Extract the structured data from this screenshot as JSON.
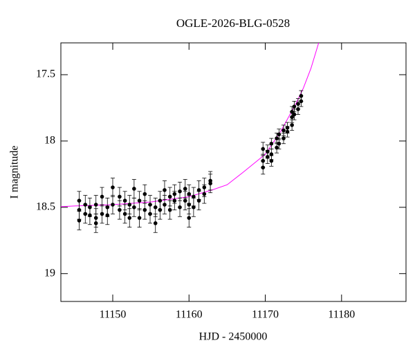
{
  "chart_data": {
    "type": "scatter",
    "title": "OGLE-2026-BLG-0528",
    "x_label": "HJD - 2450000",
    "y_label": "I magnitude",
    "xlim": [
      11143.2,
      11188.45
    ],
    "xticks": [
      11150,
      11160,
      11170,
      11180
    ],
    "ylim": [
      17.26,
      19.21
    ],
    "yticks": [
      17.5,
      18,
      18.5,
      19
    ],
    "y_inverted": true,
    "series": [
      {
        "type": "scatter",
        "color": "#000000",
        "x": [
          11145.6,
          11145.6,
          11145.6,
          11146.4,
          11146.4,
          11147.0,
          11147.0,
          11147.8,
          11147.8,
          11147.8,
          11148.6,
          11148.6,
          11149.3,
          11149.3,
          11150.0,
          11150.0,
          11150.9,
          11150.9,
          11151.6,
          11151.6,
          11152.2,
          11152.2,
          11152.8,
          11152.8,
          11153.5,
          11153.5,
          11154.2,
          11154.2,
          11154.9,
          11154.9,
          11155.6,
          11155.6,
          11156.2,
          11156.2,
          11156.8,
          11156.8,
          11157.5,
          11157.5,
          11158.1,
          11158.1,
          11158.8,
          11158.8,
          11159.5,
          11159.5,
          11160.0,
          11160.0,
          11160.0,
          11160.6,
          11160.6,
          11161.3,
          11161.3,
          11162.0,
          11162.0,
          11162.8,
          11162.8,
          11169.7,
          11169.7,
          11169.7,
          11170.3,
          11170.3,
          11170.8,
          11170.8,
          11170.8,
          11171.5,
          11171.5,
          11171.8,
          11171.8,
          11172.4,
          11172.4,
          11172.9,
          11172.9,
          11173.5,
          11173.5,
          11173.5,
          11173.8,
          11173.8,
          11174.3,
          11174.3,
          11174.7,
          11174.7
        ],
        "values": [
          18.6,
          18.52,
          18.45,
          18.48,
          18.55,
          18.5,
          18.56,
          18.62,
          18.58,
          18.48,
          18.55,
          18.42,
          18.5,
          18.56,
          18.35,
          18.48,
          18.42,
          18.52,
          18.55,
          18.45,
          18.48,
          18.58,
          18.36,
          18.5,
          18.45,
          18.58,
          18.4,
          18.52,
          18.48,
          18.55,
          18.62,
          18.5,
          18.45,
          18.52,
          18.37,
          18.48,
          18.42,
          18.52,
          18.45,
          18.4,
          18.5,
          18.38,
          18.45,
          18.36,
          18.58,
          18.48,
          18.4,
          18.42,
          18.5,
          18.37,
          18.45,
          18.4,
          18.35,
          18.3,
          18.32,
          18.2,
          18.15,
          18.06,
          18.08,
          18.12,
          18.15,
          18.1,
          18.02,
          18.05,
          17.98,
          17.95,
          18.02,
          17.98,
          17.92,
          17.9,
          17.93,
          17.88,
          17.82,
          17.78,
          17.8,
          17.74,
          17.76,
          17.72,
          17.7,
          17.66
        ],
        "errors": [
          0.07,
          0.07,
          0.07,
          0.07,
          0.07,
          0.07,
          0.07,
          0.07,
          0.07,
          0.07,
          0.07,
          0.07,
          0.07,
          0.07,
          0.07,
          0.07,
          0.07,
          0.07,
          0.07,
          0.07,
          0.07,
          0.07,
          0.07,
          0.07,
          0.07,
          0.07,
          0.07,
          0.07,
          0.07,
          0.07,
          0.07,
          0.07,
          0.07,
          0.07,
          0.07,
          0.07,
          0.07,
          0.07,
          0.07,
          0.07,
          0.07,
          0.07,
          0.07,
          0.07,
          0.07,
          0.07,
          0.07,
          0.07,
          0.07,
          0.07,
          0.07,
          0.07,
          0.07,
          0.07,
          0.07,
          0.05,
          0.05,
          0.05,
          0.05,
          0.05,
          0.04,
          0.04,
          0.04,
          0.04,
          0.04,
          0.04,
          0.04,
          0.04,
          0.04,
          0.04,
          0.04,
          0.04,
          0.04,
          0.04,
          0.04,
          0.04,
          0.04,
          0.04,
          0.04,
          0.04
        ]
      },
      {
        "type": "line",
        "color": "#ff00ff",
        "x": [
          11143.2,
          11145,
          11150,
          11155,
          11160,
          11163,
          11165,
          11167,
          11170,
          11172,
          11174,
          11175,
          11176,
          11177
        ],
        "values": [
          18.495,
          18.49,
          18.48,
          18.46,
          18.42,
          18.37,
          18.33,
          18.24,
          18.1,
          17.93,
          17.72,
          17.6,
          17.45,
          17.26
        ]
      }
    ]
  }
}
